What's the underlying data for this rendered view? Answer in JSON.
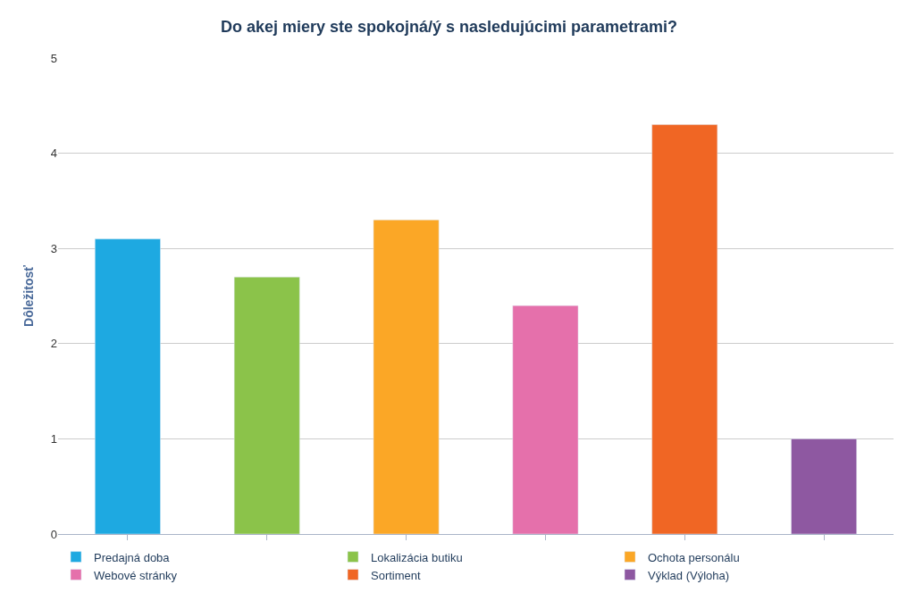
{
  "chart_data": {
    "type": "bar",
    "title": "Do akej miery ste spokojná/ý s nasledujúcimi parametrami?",
    "ylabel": "Dôležitosť",
    "categories": [
      null,
      null,
      null,
      null,
      null,
      null
    ],
    "series": [
      {
        "name": "Predajná doba",
        "color": "#1ea9e1",
        "values": [
          3.1,
          null,
          null,
          null,
          null,
          null
        ]
      },
      {
        "name": "Lokalizácia butiku",
        "color": "#8bc34a",
        "values": [
          null,
          2.7,
          null,
          null,
          null,
          null
        ]
      },
      {
        "name": "Ochota personálu",
        "color": "#fba726",
        "values": [
          null,
          null,
          3.3,
          null,
          null,
          null
        ]
      },
      {
        "name": "Webové stránky",
        "color": "#e570ab",
        "values": [
          null,
          null,
          null,
          2.4,
          null,
          null
        ]
      },
      {
        "name": "Sortiment",
        "color": "#f06624",
        "values": [
          null,
          null,
          null,
          null,
          4.3,
          null
        ]
      },
      {
        "name": "Výklad (Výloha)",
        "color": "#8e58a1",
        "values": [
          null,
          null,
          null,
          null,
          null,
          1.0
        ]
      }
    ],
    "ylim": [
      0,
      5
    ],
    "yticks": [
      0,
      1,
      2,
      3,
      4,
      5
    ],
    "grid": "y",
    "legend": "bottom"
  }
}
